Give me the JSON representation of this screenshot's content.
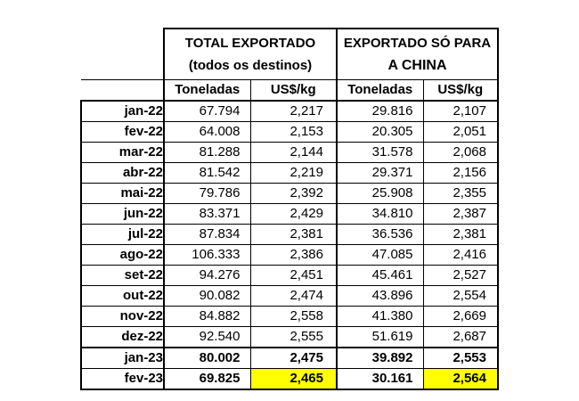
{
  "table": {
    "group_headers": {
      "total": {
        "line1": "TOTAL EXPORTADO",
        "line2": "(todos os destinos)"
      },
      "china": {
        "line1": "EXPORTADO SÓ PARA",
        "line2": "A CHINA"
      }
    },
    "column_headers": {
      "total_toneladas": "Toneladas",
      "total_usd_kg": "US$/kg",
      "china_toneladas": "Toneladas",
      "china_usd_kg": "US$/kg"
    },
    "highlight_color": "#ffff00",
    "rows": [
      {
        "month": "jan-22",
        "total_ton": "67.794",
        "total_usd": "2,217",
        "china_ton": "29.816",
        "china_usd": "2,107"
      },
      {
        "month": "fev-22",
        "total_ton": "64.008",
        "total_usd": "2,153",
        "china_ton": "20.305",
        "china_usd": "2,051"
      },
      {
        "month": "mar-22",
        "total_ton": "81.288",
        "total_usd": "2,144",
        "china_ton": "31.578",
        "china_usd": "2,068"
      },
      {
        "month": "abr-22",
        "total_ton": "81.542",
        "total_usd": "2,219",
        "china_ton": "29.371",
        "china_usd": "2,156"
      },
      {
        "month": "mai-22",
        "total_ton": "79.786",
        "total_usd": "2,392",
        "china_ton": "25.908",
        "china_usd": "2,355"
      },
      {
        "month": "jun-22",
        "total_ton": "83.371",
        "total_usd": "2,429",
        "china_ton": "34.810",
        "china_usd": "2,387"
      },
      {
        "month": "jul-22",
        "total_ton": "87.834",
        "total_usd": "2,381",
        "china_ton": "36.536",
        "china_usd": "2,381"
      },
      {
        "month": "ago-22",
        "total_ton": "106.333",
        "total_usd": "2,386",
        "china_ton": "47.085",
        "china_usd": "2,416"
      },
      {
        "month": "set-22",
        "total_ton": "94.276",
        "total_usd": "2,451",
        "china_ton": "45.461",
        "china_usd": "2,527"
      },
      {
        "month": "out-22",
        "total_ton": "90.082",
        "total_usd": "2,474",
        "china_ton": "43.896",
        "china_usd": "2,554"
      },
      {
        "month": "nov-22",
        "total_ton": "84.882",
        "total_usd": "2,558",
        "china_ton": "41.380",
        "china_usd": "2,669"
      },
      {
        "month": "dez-22",
        "total_ton": "92.540",
        "total_usd": "2,555",
        "china_ton": "51.619",
        "china_usd": "2,687"
      },
      {
        "month": "jan-23",
        "total_ton": "80.002",
        "total_usd": "2,475",
        "china_ton": "39.892",
        "china_usd": "2,553"
      },
      {
        "month": "fev-23",
        "total_ton": "69.825",
        "total_usd": "2,465",
        "china_ton": "30.161",
        "china_usd": "2,564"
      }
    ]
  }
}
